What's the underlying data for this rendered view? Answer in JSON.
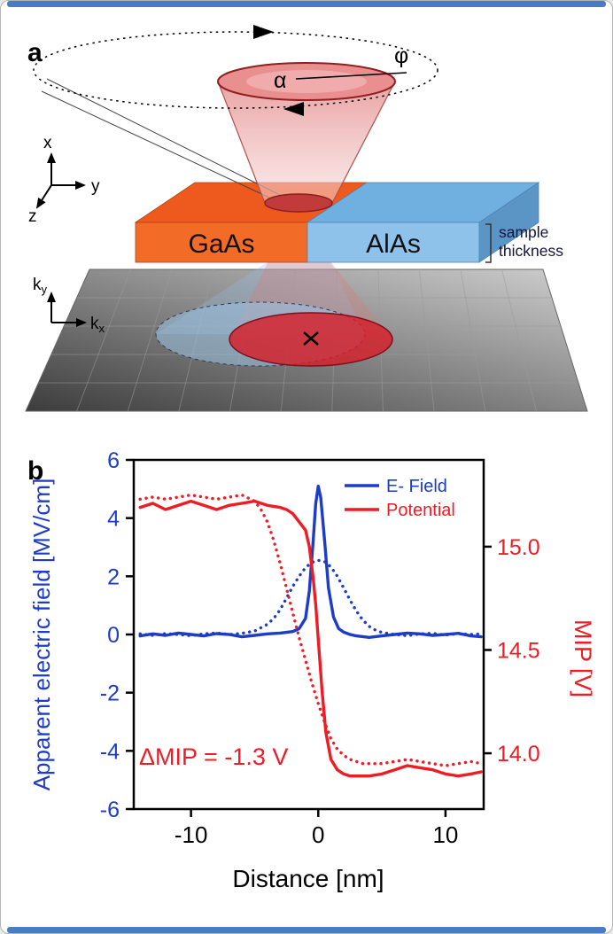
{
  "frame": {
    "accent_color": "#4a7cc2"
  },
  "colors": {
    "blue_axis": "#1d3cc8",
    "red_axis": "#ee1c25",
    "gaas_orange": "#f2611d",
    "alas_blue": "#7db8e4",
    "cone_pink": "#e89a9a",
    "detector_dark": "#3c3c3c"
  },
  "panel_a": {
    "label": "a",
    "phi": "φ",
    "alpha": "α",
    "regions": {
      "left": "GaAs",
      "right": "AlAs"
    },
    "sample_thickness": [
      "sample",
      "thickness"
    ],
    "axes_real": {
      "x": "x",
      "y": "y",
      "z": "z"
    },
    "axes_reciprocal": {
      "k": "k",
      "x_sub": "x",
      "y_sub": "y"
    }
  },
  "panel_b": {
    "label": "b",
    "annotation": "ΔMIP = -1.3 V"
  },
  "chart_data": {
    "type": "line",
    "title": "",
    "xlabel": "Distance [nm]",
    "ylabel_left": "Apparent electric field [MV/cm]",
    "ylabel_right": "MIP [V]",
    "xlim": [
      -14.5,
      13
    ],
    "ylim_left": [
      -6,
      6
    ],
    "ylim_right": [
      13.73,
      15.42
    ],
    "grid": false,
    "legend_position": "upper right",
    "axis_colors": {
      "left": "#1d3cc8",
      "right": "#ee1c25",
      "bottom": "#000000"
    },
    "xticks": {
      "values": [
        -10,
        0,
        10
      ],
      "labels": [
        "-10",
        "0",
        "10"
      ]
    },
    "yticks_left": {
      "values": [
        6,
        4,
        2,
        0,
        -2,
        -4,
        -6
      ],
      "labels": [
        "6",
        "4",
        "2",
        "0",
        "-2",
        "-4",
        "-6"
      ]
    },
    "yticks_right": {
      "values": [
        15.0,
        14.5,
        14.0
      ],
      "labels": [
        "15.0",
        "14.5",
        "14.0"
      ]
    },
    "legend": [
      {
        "label": "E- Field",
        "color": "#1d3cc8"
      },
      {
        "label": "Potential",
        "color": "#ee1c25"
      }
    ],
    "series": [
      {
        "name": "E-field measured (solid)",
        "axis": "left",
        "style": "solid",
        "color": "#1d3cc8",
        "x": [
          -14,
          -13,
          -12,
          -11,
          -10,
          -9,
          -8,
          -7,
          -6,
          -5,
          -4,
          -3,
          -2,
          -1.5,
          -1,
          -0.7,
          -0.4,
          -0.2,
          0,
          0.2,
          0.5,
          0.8,
          1.2,
          1.6,
          2,
          2.5,
          3,
          4,
          5,
          6,
          7,
          8,
          9,
          10,
          11,
          12,
          12.8
        ],
        "y": [
          -0.05,
          0.02,
          -0.03,
          0.05,
          0,
          -0.05,
          0.03,
          0,
          -0.08,
          -0.03,
          0.02,
          0.05,
          0.1,
          0.2,
          0.55,
          1.5,
          3.2,
          4.5,
          5.1,
          4.7,
          3.2,
          1.6,
          0.6,
          0.2,
          0.08,
          0,
          -0.05,
          -0.1,
          -0.05,
          0,
          0.05,
          0.02,
          -0.03,
          0,
          0.04,
          -0.05,
          -0.08
        ]
      },
      {
        "name": "E-field broadened (dotted)",
        "axis": "left",
        "style": "dotted",
        "color": "#1d3cc8",
        "x": [
          -14,
          -13,
          -12,
          -11,
          -10,
          -9,
          -8,
          -7,
          -6,
          -5,
          -4,
          -3.5,
          -3,
          -2.5,
          -2,
          -1.5,
          -1,
          -0.5,
          0,
          0.5,
          1,
          1.5,
          2,
          2.5,
          3,
          3.5,
          4,
          4.5,
          5,
          6,
          7,
          8,
          9,
          10,
          11,
          12,
          12.8
        ],
        "y": [
          0.02,
          -0.03,
          0.03,
          0,
          -0.04,
          0.02,
          0.05,
          0,
          0.04,
          0.12,
          0.35,
          0.55,
          0.85,
          1.25,
          1.65,
          2.0,
          2.3,
          2.48,
          2.55,
          2.5,
          2.32,
          2.0,
          1.6,
          1.18,
          0.8,
          0.5,
          0.28,
          0.15,
          0.07,
          0,
          -0.04,
          0.02,
          0.04,
          -0.02,
          0.03,
          0,
          0.02
        ]
      },
      {
        "name": "Potential measured (solid)",
        "axis": "right",
        "style": "solid",
        "color": "#ee1c25",
        "x": [
          -14,
          -13,
          -12,
          -11,
          -10,
          -9,
          -8,
          -7,
          -6,
          -5,
          -4,
          -3,
          -2.5,
          -2,
          -1.5,
          -1,
          -0.7,
          -0.4,
          -0.2,
          0,
          0.3,
          0.6,
          1,
          1.5,
          2,
          2.5,
          3,
          4,
          5,
          6,
          7,
          8,
          9,
          10,
          11,
          12,
          12.8
        ],
        "y": [
          15.19,
          15.21,
          15.18,
          15.2,
          15.22,
          15.2,
          15.18,
          15.2,
          15.21,
          15.22,
          15.2,
          15.19,
          15.18,
          15.16,
          15.12,
          15.08,
          15.0,
          14.85,
          14.72,
          14.55,
          14.3,
          14.1,
          13.97,
          13.92,
          13.9,
          13.89,
          13.89,
          13.89,
          13.9,
          13.92,
          13.94,
          13.93,
          13.92,
          13.9,
          13.89,
          13.9,
          13.91
        ]
      },
      {
        "name": "Potential broadened (dotted)",
        "axis": "right",
        "style": "dotted",
        "color": "#ee1c25",
        "x": [
          -14,
          -13,
          -12,
          -11,
          -10,
          -9,
          -8,
          -7,
          -6,
          -5,
          -4.5,
          -4,
          -3.5,
          -3,
          -2.5,
          -2,
          -1.5,
          -1,
          -0.5,
          0,
          0.5,
          1,
          1.5,
          2,
          2.5,
          3,
          3.5,
          4,
          5,
          6,
          7,
          8,
          9,
          10,
          11,
          12,
          12.8
        ],
        "y": [
          15.23,
          15.24,
          15.23,
          15.24,
          15.25,
          15.24,
          15.23,
          15.24,
          15.25,
          15.22,
          15.18,
          15.12,
          15.03,
          14.92,
          14.8,
          14.68,
          14.56,
          14.45,
          14.34,
          14.24,
          14.15,
          14.07,
          14.02,
          13.99,
          13.97,
          13.96,
          13.95,
          13.95,
          13.95,
          13.96,
          13.97,
          13.96,
          13.95,
          13.94,
          13.95,
          13.96,
          13.95
        ]
      }
    ]
  }
}
